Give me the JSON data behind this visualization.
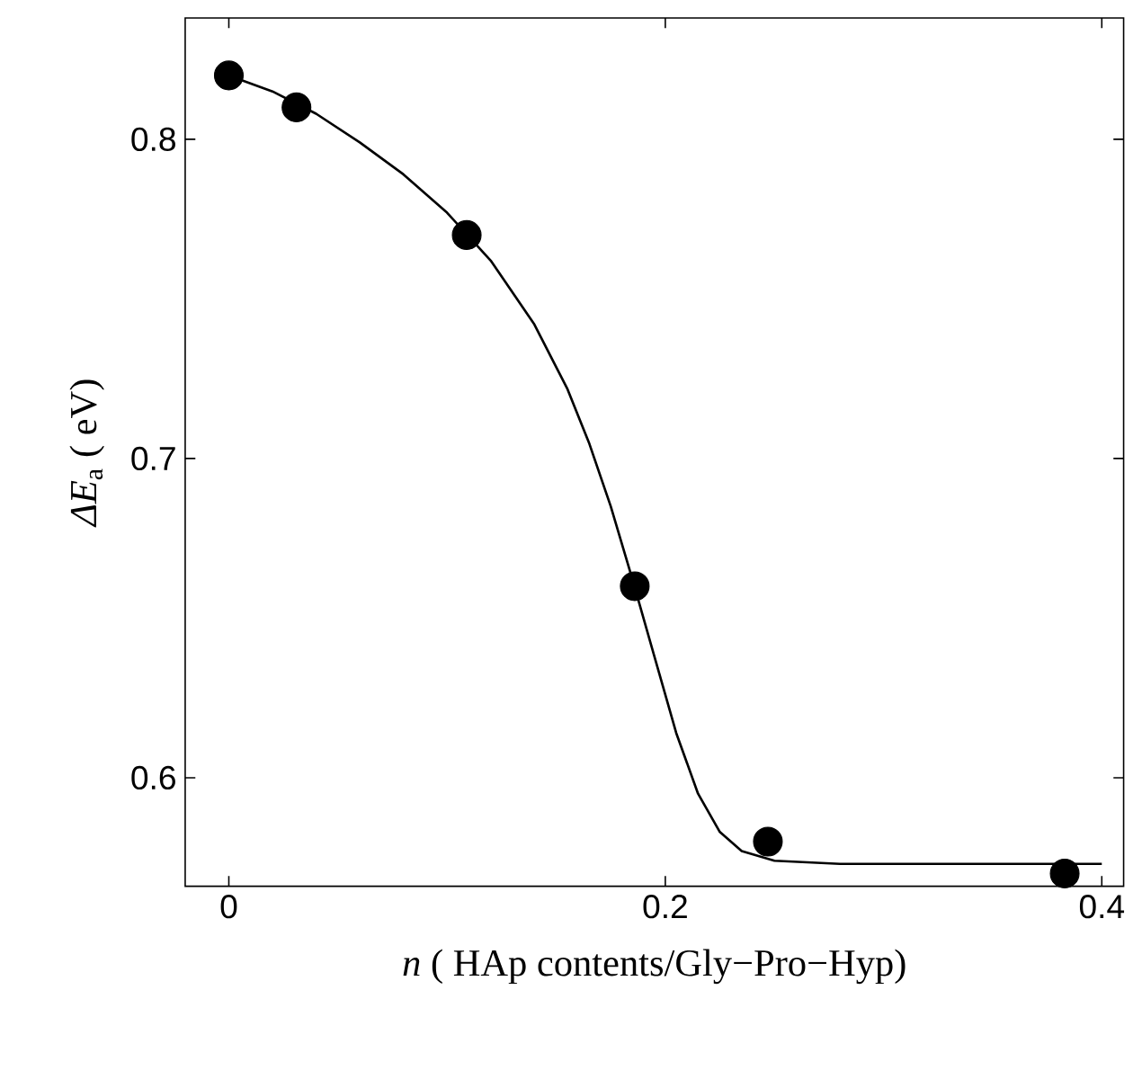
{
  "chart_data": {
    "type": "scatter",
    "xlabel": "*n* ( HAp contents/Gly−Pro−Hyp)",
    "ylabel": "*ΔE*$_{a}$  ( eV)",
    "xlim": [
      -0.02,
      0.41
    ],
    "ylim": [
      0.566,
      0.838
    ],
    "xticks": [
      0,
      0.2,
      0.4
    ],
    "yticks": [
      0.6,
      0.7,
      0.8
    ],
    "grid": false,
    "series": [
      {
        "color": "#000000",
        "marker": "circle",
        "x": [
          0,
          0.031,
          0.109,
          0.186,
          0.247,
          0.383
        ],
        "values": [
          0.82,
          0.81,
          0.77,
          0.66,
          0.58,
          0.57
        ]
      },
      {
        "type": "line",
        "color": "#000000",
        "marker": "none",
        "line_style": "solid",
        "x": [
          0,
          0.02,
          0.04,
          0.06,
          0.08,
          0.1,
          0.12,
          0.14,
          0.155,
          0.165,
          0.175,
          0.185,
          0.195,
          0.205,
          0.215,
          0.225,
          0.235,
          0.25,
          0.28,
          0.32,
          0.4
        ],
        "values": [
          0.82,
          0.815,
          0.808,
          0.799,
          0.789,
          0.777,
          0.762,
          0.742,
          0.722,
          0.705,
          0.685,
          0.662,
          0.638,
          0.614,
          0.595,
          0.583,
          0.577,
          0.574,
          0.573,
          0.573,
          0.573
        ]
      }
    ]
  }
}
